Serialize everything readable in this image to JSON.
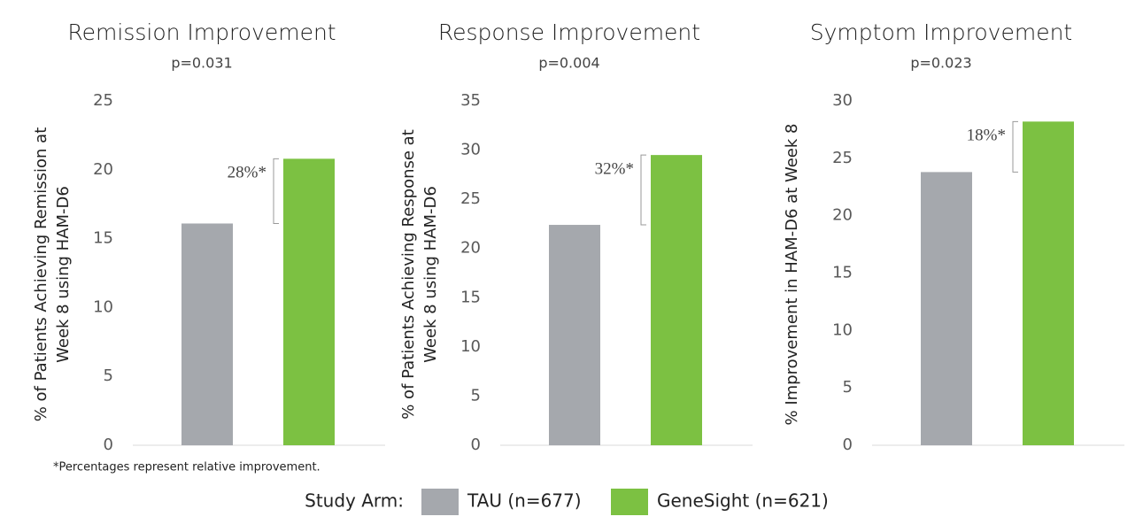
{
  "chart_data": [
    {
      "type": "bar",
      "title": "Remission Improvement",
      "subtitle": "p=0.031",
      "ylabel": [
        "% of Patients Achieving Remission at",
        "Week 8 using HAM-D6"
      ],
      "categories": [
        null
      ],
      "series": [
        {
          "color": "#a5a8ad",
          "values": [
            16.1
          ]
        },
        {
          "color": "#7cc142",
          "values": [
            20.8
          ]
        }
      ],
      "annotation": "28%*",
      "ylim": [
        0,
        25
      ],
      "yticks": [
        0,
        5,
        10,
        15,
        20,
        25
      ]
    },
    {
      "type": "bar",
      "title": "Response Improvement",
      "subtitle": "p=0.004",
      "ylabel": [
        "% of Patients Achieving Response at",
        "Week 8 using HAM-D6"
      ],
      "categories": [
        null
      ],
      "series": [
        {
          "color": "#a5a8ad",
          "values": [
            22.4
          ]
        },
        {
          "color": "#7cc142",
          "values": [
            29.5
          ]
        }
      ],
      "annotation": "32%*",
      "ylim": [
        0,
        35
      ],
      "yticks": [
        0,
        5,
        10,
        15,
        20,
        25,
        30,
        35
      ]
    },
    {
      "type": "bar",
      "title": "Symptom Improvement",
      "subtitle": "p=0.023",
      "ylabel": [
        "% Improvement in HAM-D6 at Week 8"
      ],
      "categories": [
        null
      ],
      "series": [
        {
          "color": "#a5a8ad",
          "values": [
            23.8
          ]
        },
        {
          "color": "#7cc142",
          "values": [
            28.2
          ]
        }
      ],
      "annotation": "18%*",
      "ylim": [
        0,
        30
      ],
      "yticks": [
        0,
        5,
        10,
        15,
        20,
        25,
        30
      ]
    }
  ],
  "footnote": "*Percentages represent relative improvement.",
  "legend": {
    "title": "Study Arm:",
    "items": [
      {
        "name": "TAU (n=677)",
        "color": "#a5a8ad"
      },
      {
        "name": "GeneSight (n=621)",
        "color": "#7cc142"
      }
    ]
  }
}
